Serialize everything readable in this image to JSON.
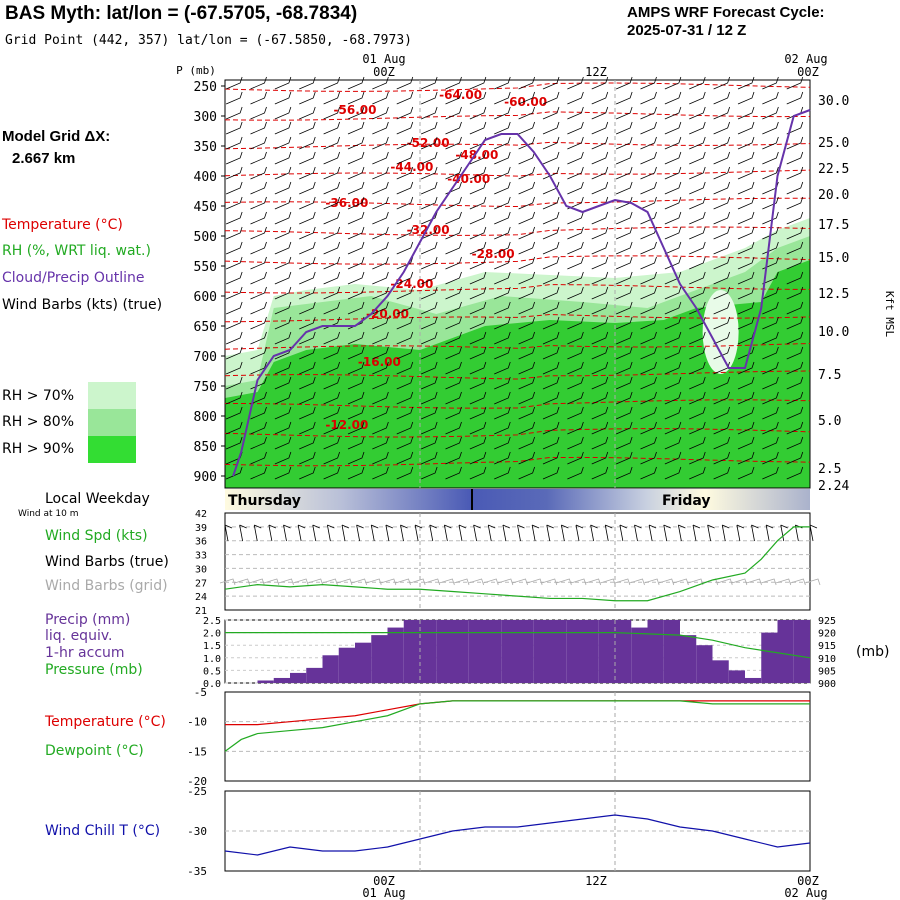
{
  "header": {
    "title": "BAS Myth:  lat/lon = (-67.5705, -68.7834)",
    "grid_point": "Grid Point (442, 357) lat/lon = (-67.5850, -68.7973)",
    "cycle_line1": "AMPS WRF Forecast Cycle:",
    "cycle_line2": "2025-07-31 / 12  Z"
  },
  "time_axis": {
    "top_dates": [
      "01 Aug",
      "02 Aug"
    ],
    "bottom_dates": [
      "01 Aug",
      "02 Aug"
    ],
    "hour_ticks": [
      "00Z",
      "12Z",
      "00Z"
    ]
  },
  "model_grid": {
    "label": "Model Grid ΔX:",
    "value": "2.667 km"
  },
  "legends": {
    "temperature": "Temperature (°C)",
    "rh": "RH (%, WRT liq. wat.)",
    "cloud": "Cloud/Precip Outline",
    "wind_barbs": "Wind Barbs (kts) (true)",
    "rh_levels": [
      "RH > 70%",
      "RH > 80%",
      "RH > 90%"
    ],
    "local_weekday": "Local Weekday",
    "wind_at_10m": "Wind at 10 m",
    "wind_spd": "Wind Spd (kts)",
    "wind_barbs_true": "Wind Barbs (true)",
    "wind_barbs_grid": "Wind Barbs (grid)",
    "precip_1": "Precip (mm)",
    "precip_2": "liq. equiv.",
    "precip_3": "1-hr accum",
    "pressure": "Pressure (mb)",
    "pressure_unit": "(mb)",
    "temp_sfc": "Temperature (°C)",
    "dewpoint": "Dewpoint (°C)",
    "wind_chill": "Wind Chill T (°C)"
  },
  "colors": {
    "temperature": "#dd0000",
    "rh70": "#ccf5cc",
    "rh80": "#99e699",
    "rh90": "#33cc33",
    "cloud": "#6633aa",
    "precip": "#663399",
    "pressure": "#22aa22",
    "wind_chill": "#1111aa",
    "grid_barbs": "#aaaaaa"
  },
  "chart_data": [
    {
      "type": "heatmap",
      "title": "",
      "y_axis_left_label": "P (mb)",
      "y_axis_right_label": "Kft MSL",
      "pressure_levels": [
        "250",
        "300",
        "350",
        "400",
        "450",
        "500",
        "550",
        "600",
        "650",
        "700",
        "750",
        "800",
        "850",
        "900"
      ],
      "height_labels": [
        "30.0",
        "25.0",
        "22.5",
        "20.0",
        "17.5",
        "15.0",
        "12.5",
        "10.0",
        "7.5",
        "5.0",
        "2.5",
        "2.24"
      ],
      "forecast_hours": [
        0,
        12,
        24,
        36
      ],
      "temperature_contours": [
        {
          "label": "-64.00",
          "h": 14.5,
          "p": 265
        },
        {
          "label": "-60.00",
          "h": 18.5,
          "p": 277
        },
        {
          "label": "-56.00",
          "h": 8,
          "p": 290
        },
        {
          "label": "-52.00",
          "h": 12.5,
          "p": 345
        },
        {
          "label": "-48.00",
          "h": 15.5,
          "p": 365
        },
        {
          "label": "-44.00",
          "h": 11.5,
          "p": 385
        },
        {
          "label": "-40.00",
          "h": 15,
          "p": 405
        },
        {
          "label": "-36.00",
          "h": 7.5,
          "p": 445
        },
        {
          "label": "-32.00",
          "h": 12.5,
          "p": 490
        },
        {
          "label": "-28.00",
          "h": 16.5,
          "p": 530
        },
        {
          "label": "-24.00",
          "h": 11.5,
          "p": 580
        },
        {
          "label": "-20.00",
          "h": 10,
          "p": 630
        },
        {
          "label": "-16.00",
          "h": 9.5,
          "p": 710
        },
        {
          "label": "-12.00",
          "h": 7.5,
          "p": 815
        }
      ],
      "cloud_outline": {
        "hours": [
          0.5,
          1,
          2,
          3,
          4,
          5,
          6,
          7,
          8,
          9,
          10,
          11,
          12,
          13,
          14,
          15,
          16,
          17,
          18,
          19,
          20,
          21,
          22,
          23,
          24,
          25,
          26,
          27,
          28,
          29,
          30,
          31,
          32,
          33,
          34,
          35,
          36
        ],
        "pressure": [
          900,
          860,
          740,
          700,
          690,
          660,
          650,
          650,
          650,
          630,
          600,
          560,
          510,
          460,
          420,
          380,
          340,
          330,
          330,
          360,
          400,
          450,
          460,
          450,
          440,
          445,
          460,
          520,
          580,
          620,
          670,
          720,
          720,
          620,
          400,
          300,
          290
        ]
      },
      "rh_regions": "RH > 70%, > 80%, > 90% shaded low-level layer"
    },
    {
      "type": "line",
      "title": "",
      "ylabel": "Wind Spd (kts)",
      "ylim": [
        21,
        42
      ],
      "y_ticks": [
        "42",
        "39",
        "36",
        "33",
        "30",
        "27",
        "24",
        "21"
      ],
      "x": [
        0,
        2,
        4,
        6,
        8,
        10,
        12,
        14,
        16,
        18,
        20,
        22,
        24,
        26,
        28,
        30,
        32,
        33,
        34,
        35,
        36
      ],
      "values": [
        25.5,
        26.5,
        26,
        26.5,
        26,
        25.5,
        25.5,
        25,
        24.5,
        24,
        23.5,
        23.5,
        23,
        23,
        25,
        27.5,
        29,
        32,
        36,
        39,
        39
      ]
    },
    {
      "type": "bar",
      "title": "",
      "ylabel": "Precip (mm)",
      "ylim": [
        0,
        2.5
      ],
      "y_ticks": [
        "2.5",
        "2.0",
        "1.5",
        "1.0",
        "0.5",
        "0.0"
      ],
      "y2_ticks": [
        "925",
        "920",
        "915",
        "910",
        "905",
        "900"
      ],
      "precip_hours": [
        1,
        2,
        3,
        4,
        5,
        6,
        7,
        8,
        9,
        10,
        11,
        12,
        13,
        14,
        15,
        16,
        17,
        18,
        19,
        20,
        21,
        22,
        23,
        24,
        25,
        26,
        27,
        28,
        29,
        30,
        31,
        32,
        33,
        34,
        35,
        36
      ],
      "precip_values": [
        0.0,
        0.0,
        0.1,
        0.2,
        0.4,
        0.6,
        1.1,
        1.4,
        1.6,
        1.9,
        2.2,
        2.5,
        2.5,
        2.5,
        2.5,
        2.5,
        2.5,
        2.5,
        2.5,
        2.5,
        2.5,
        2.5,
        2.5,
        2.5,
        2.5,
        2.2,
        2.5,
        2.5,
        1.9,
        1.5,
        0.9,
        0.5,
        0.2,
        2.0,
        2.5,
        2.5
      ],
      "pressure_hours": [
        0,
        6,
        12,
        18,
        24,
        28,
        30,
        32,
        34,
        36
      ],
      "pressure_values": [
        920,
        920,
        920,
        920,
        920,
        919,
        917,
        914,
        912,
        910
      ]
    },
    {
      "type": "line",
      "title": "",
      "ylim": [
        -20,
        -5
      ],
      "y_ticks": [
        "-5",
        "-10",
        "-15",
        "-20"
      ],
      "series": [
        {
          "name": "Temperature (°C)",
          "x": [
            0,
            2,
            4,
            6,
            8,
            10,
            12,
            14,
            16,
            18,
            20,
            22,
            24,
            26,
            28,
            30,
            32,
            34,
            36
          ],
          "values": [
            -10.5,
            -10.5,
            -10,
            -9.5,
            -9,
            -8,
            -7,
            -6.5,
            -6.5,
            -6.5,
            -6.5,
            -6.5,
            -6.5,
            -6.5,
            -6.5,
            -6.5,
            -6.5,
            -6.5,
            -6.5
          ]
        },
        {
          "name": "Dewpoint (°C)",
          "x": [
            0,
            1,
            2,
            4,
            6,
            8,
            10,
            12,
            14,
            16,
            18,
            20,
            22,
            24,
            26,
            28,
            30,
            32,
            34,
            36
          ],
          "values": [
            -15,
            -13,
            -12,
            -11.5,
            -11,
            -10,
            -9,
            -7,
            -6.5,
            -6.5,
            -6.5,
            -6.5,
            -6.5,
            -6.5,
            -6.5,
            -6.5,
            -7,
            -7,
            -7,
            -7
          ]
        }
      ]
    },
    {
      "type": "line",
      "title": "",
      "ylabel": "Wind Chill T (°C)",
      "ylim": [
        -35,
        -25
      ],
      "y_ticks": [
        "-25",
        "-30",
        "-35"
      ],
      "x": [
        0,
        2,
        4,
        6,
        8,
        10,
        12,
        14,
        16,
        18,
        20,
        22,
        24,
        26,
        28,
        30,
        32,
        34,
        36
      ],
      "values": [
        -32.5,
        -33,
        -32,
        -32.5,
        -32.5,
        -32,
        -31,
        -30,
        -29.5,
        -29.5,
        -29,
        -28.5,
        -28,
        -28.5,
        -29.5,
        -30,
        -31,
        -32,
        -31.5
      ]
    }
  ]
}
